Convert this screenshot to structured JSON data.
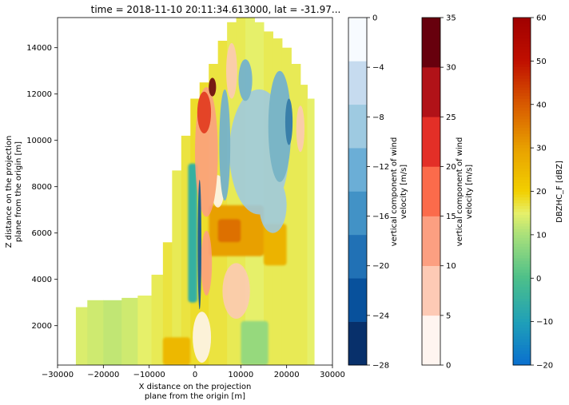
{
  "chart_data": {
    "type": "heatmap",
    "title": "time = 2018-11-10 20:11:34.613000, lat = -31.97...",
    "xlabel_line1": "X distance on the projection",
    "xlabel_line2": "plane from the origin [m]",
    "ylabel_line1": "Z distance on the projection",
    "ylabel_line2": "plane from the origin [m]",
    "xlim": [
      -30000,
      30000
    ],
    "ylim": [
      300,
      15300
    ],
    "xticks": [
      {
        "value": -30000,
        "label": "−30000"
      },
      {
        "value": -20000,
        "label": "−20000"
      },
      {
        "value": -10000,
        "label": "−10000"
      },
      {
        "value": 0,
        "label": "0"
      },
      {
        "value": 10000,
        "label": "10000"
      },
      {
        "value": 20000,
        "label": "20000"
      },
      {
        "value": 30000,
        "label": "30000"
      }
    ],
    "yticks": [
      {
        "value": 2000,
        "label": "2000"
      },
      {
        "value": 4000,
        "label": "4000"
      },
      {
        "value": 6000,
        "label": "6000"
      },
      {
        "value": 8000,
        "label": "8000"
      },
      {
        "value": 10000,
        "label": "10000"
      },
      {
        "value": 12000,
        "label": "12000"
      },
      {
        "value": 14000,
        "label": "14000"
      }
    ],
    "reflectivity_field": {
      "name": "DBZHC_F",
      "units": "dBZ",
      "columns": [
        {
          "x": -25000,
          "top": 2800,
          "dbz": 14
        },
        {
          "x": -22000,
          "top": 3100,
          "dbz": 13
        },
        {
          "x": -18000,
          "top": 3100,
          "dbz": 12
        },
        {
          "x": -14000,
          "top": 3200,
          "dbz": 13
        },
        {
          "x": -11000,
          "top": 3300,
          "dbz": 15
        },
        {
          "x": -8000,
          "top": 4200,
          "dbz": 16
        },
        {
          "x": -6000,
          "top": 5600,
          "dbz": 17
        },
        {
          "x": -4000,
          "top": 8700,
          "dbz": 16
        },
        {
          "x": -2000,
          "top": 10200,
          "dbz": 17
        },
        {
          "x": 0,
          "top": 11800,
          "dbz": 18
        },
        {
          "x": 2000,
          "top": 12500,
          "dbz": 18
        },
        {
          "x": 4000,
          "top": 13300,
          "dbz": 17
        },
        {
          "x": 6000,
          "top": 14300,
          "dbz": 17
        },
        {
          "x": 8000,
          "top": 15100,
          "dbz": 16
        },
        {
          "x": 10000,
          "top": 15300,
          "dbz": 16
        },
        {
          "x": 12000,
          "top": 15300,
          "dbz": 15
        },
        {
          "x": 14000,
          "top": 15100,
          "dbz": 15
        },
        {
          "x": 16000,
          "top": 14700,
          "dbz": 16
        },
        {
          "x": 18000,
          "top": 14400,
          "dbz": 16
        },
        {
          "x": 20000,
          "top": 14000,
          "dbz": 16
        },
        {
          "x": 22000,
          "top": 13300,
          "dbz": 16
        },
        {
          "x": 24000,
          "top": 12400,
          "dbz": 16
        },
        {
          "x": 25000,
          "top": 11800,
          "dbz": 15
        }
      ],
      "features": [
        {
          "shape": "rect",
          "x0": -7000,
          "x1": -1000,
          "y0": 300,
          "y1": 1500,
          "dbz": 25
        },
        {
          "shape": "rect",
          "x0": 3000,
          "x1": 15000,
          "y0": 5000,
          "y1": 7200,
          "dbz": 30
        },
        {
          "shape": "rect",
          "x0": 5000,
          "x1": 10000,
          "y0": 5600,
          "y1": 6600,
          "dbz": 37
        },
        {
          "shape": "rect",
          "x0": 15000,
          "x1": 20000,
          "y0": 4600,
          "y1": 6400,
          "dbz": 26
        },
        {
          "shape": "rect",
          "x0": -1500,
          "x1": 500,
          "y0": 3000,
          "y1": 9000,
          "dbz": -5
        },
        {
          "shape": "rect",
          "x0": 10000,
          "x1": 16000,
          "y0": 300,
          "y1": 2200,
          "dbz": 8
        }
      ]
    },
    "wind_field": {
      "name": "vertical component of wind velocity",
      "units": "m/s",
      "updrafts": [
        {
          "cx": 2500,
          "cy": 9500,
          "rx": 2500,
          "ry": 2800,
          "w": 12
        },
        {
          "cx": 2000,
          "cy": 11200,
          "rx": 1500,
          "ry": 900,
          "w": 22
        },
        {
          "cx": 3800,
          "cy": 12300,
          "rx": 800,
          "ry": 400,
          "w": 32
        },
        {
          "cx": 2500,
          "cy": 4700,
          "rx": 1200,
          "ry": 1400,
          "w": 12
        },
        {
          "cx": 9000,
          "cy": 3500,
          "rx": 3000,
          "ry": 1200,
          "w": 7
        },
        {
          "cx": 1500,
          "cy": 1500,
          "rx": 2000,
          "ry": 1100,
          "w": 2
        },
        {
          "cx": 8000,
          "cy": 13000,
          "rx": 1200,
          "ry": 1200,
          "w": 7
        },
        {
          "cx": 23000,
          "cy": 10500,
          "rx": 900,
          "ry": 1000,
          "w": 7
        },
        {
          "cx": 5000,
          "cy": 7800,
          "rx": 1300,
          "ry": 700,
          "w": 2
        }
      ],
      "downdrafts": [
        {
          "cx": 14000,
          "cy": 9500,
          "rx": 6500,
          "ry": 2700,
          "w": -6
        },
        {
          "cx": 18500,
          "cy": 10600,
          "rx": 2500,
          "ry": 2400,
          "w": -10
        },
        {
          "cx": 20500,
          "cy": 10800,
          "rx": 800,
          "ry": 1000,
          "w": -18
        },
        {
          "cx": 6500,
          "cy": 9800,
          "rx": 1200,
          "ry": 2400,
          "w": -10
        },
        {
          "cx": 1000,
          "cy": 5500,
          "rx": 400,
          "ry": 2800,
          "w": -22
        },
        {
          "cx": 17000,
          "cy": 7200,
          "rx": 3000,
          "ry": 1200,
          "w": -6
        },
        {
          "cx": 11000,
          "cy": 12600,
          "rx": 1500,
          "ry": 900,
          "w": -10
        }
      ]
    },
    "colorbars": [
      {
        "label_line1": "vertical component of wind",
        "label_line2": "velocity [m/s]",
        "cmap": "Blues_r",
        "boundaries": [
          -28,
          -24,
          -20,
          -16,
          -12,
          -8,
          -4,
          0
        ],
        "colors": [
          "#08306b",
          "#08519c",
          "#2171b5",
          "#4292c6",
          "#6baed6",
          "#9ecae1",
          "#c6dbef",
          "#f7fbff"
        ],
        "tick_labels": [
          "−28",
          "−24",
          "−20",
          "−16",
          "−12",
          "−8",
          "−4",
          "0"
        ]
      },
      {
        "label_line1": "vertical component of wind",
        "label_line2": "velocity [m/s]",
        "cmap": "Reds",
        "boundaries": [
          0,
          5,
          10,
          15,
          20,
          25,
          30,
          35
        ],
        "colors": [
          "#fff5f0",
          "#fdcab5",
          "#fc9f81",
          "#fb6b4b",
          "#e32f27",
          "#b11218",
          "#67000d"
        ],
        "tick_labels": [
          "0",
          "5",
          "10",
          "15",
          "20",
          "25",
          "30",
          "35"
        ]
      },
      {
        "label_line1": "DBZHC_F [dBZ]",
        "label_line2": "",
        "cmap": "pyart_HomeyerRainbow",
        "range": [
          -20,
          60
        ],
        "tick_values": [
          -20,
          -10,
          0,
          10,
          20,
          30,
          40,
          50,
          60
        ],
        "tick_labels": [
          "−20",
          "−10",
          "0",
          "10",
          "20",
          "30",
          "40",
          "50",
          "60"
        ],
        "color_stops": [
          {
            "v": -20,
            "c": "#0a6fcf"
          },
          {
            "v": -10,
            "c": "#1fa0b8"
          },
          {
            "v": 0,
            "c": "#4cbf8a"
          },
          {
            "v": 10,
            "c": "#a9e07a"
          },
          {
            "v": 15,
            "c": "#e6f06a"
          },
          {
            "v": 20,
            "c": "#f2d000"
          },
          {
            "v": 30,
            "c": "#e8a000"
          },
          {
            "v": 40,
            "c": "#d85a00"
          },
          {
            "v": 50,
            "c": "#c01000"
          },
          {
            "v": 60,
            "c": "#a00000"
          }
        ]
      }
    ]
  }
}
